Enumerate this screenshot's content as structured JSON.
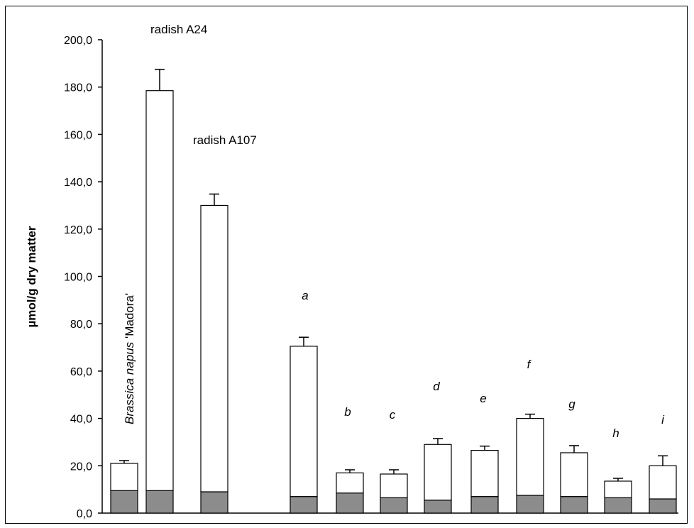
{
  "chart_data": {
    "type": "bar",
    "stacked": true,
    "ylabel": "µmol/g dry matter",
    "ylim": [
      0,
      200
    ],
    "ytick_step": 20,
    "ytick_labels": [
      "0,0",
      "20,0",
      "40,0",
      "60,0",
      "80,0",
      "100,0",
      "120,0",
      "140,0",
      "160,0",
      "180,0",
      "200,0"
    ],
    "grid": false,
    "colors": {
      "bottom": "#8c8c8c",
      "top": "#ffffff",
      "stroke": "#000000"
    },
    "categories": [
      {
        "label_prefix": "Brassica napus",
        "label_suffix": " 'Madora'",
        "label_style": "vertical"
      },
      {
        "label": "radish A24",
        "label_style": "plain"
      },
      {
        "label": "radish A107",
        "label_style": "plain"
      },
      {
        "label": "a",
        "label_style": "italic"
      },
      {
        "label": "b",
        "label_style": "italic"
      },
      {
        "label": "c",
        "label_style": "italic"
      },
      {
        "label": "d",
        "label_style": "italic"
      },
      {
        "label": "e",
        "label_style": "italic"
      },
      {
        "label": "f",
        "label_style": "italic"
      },
      {
        "label": "g",
        "label_style": "italic"
      },
      {
        "label": "h",
        "label_style": "italic"
      },
      {
        "label": "i",
        "label_style": "italic"
      }
    ],
    "series": [
      {
        "values": [
          9.5,
          9.5,
          9.0,
          7.0,
          8.5,
          6.5,
          5.5,
          7.0,
          7.5,
          7.0,
          6.5,
          6.0
        ]
      },
      {
        "values": [
          11.5,
          169.0,
          121.0,
          63.5,
          8.5,
          10.0,
          23.5,
          19.5,
          32.5,
          18.5,
          7.0,
          14.0
        ]
      }
    ],
    "totals": [
      21.0,
      178.5,
      130.0,
      70.5,
      17.0,
      16.5,
      29.0,
      26.5,
      40.0,
      25.5,
      13.5,
      20.0
    ],
    "error_bars": [
      1.2,
      9.0,
      4.8,
      3.8,
      1.3,
      1.8,
      2.5,
      1.8,
      1.8,
      3.0,
      1.2,
      4.2
    ]
  }
}
